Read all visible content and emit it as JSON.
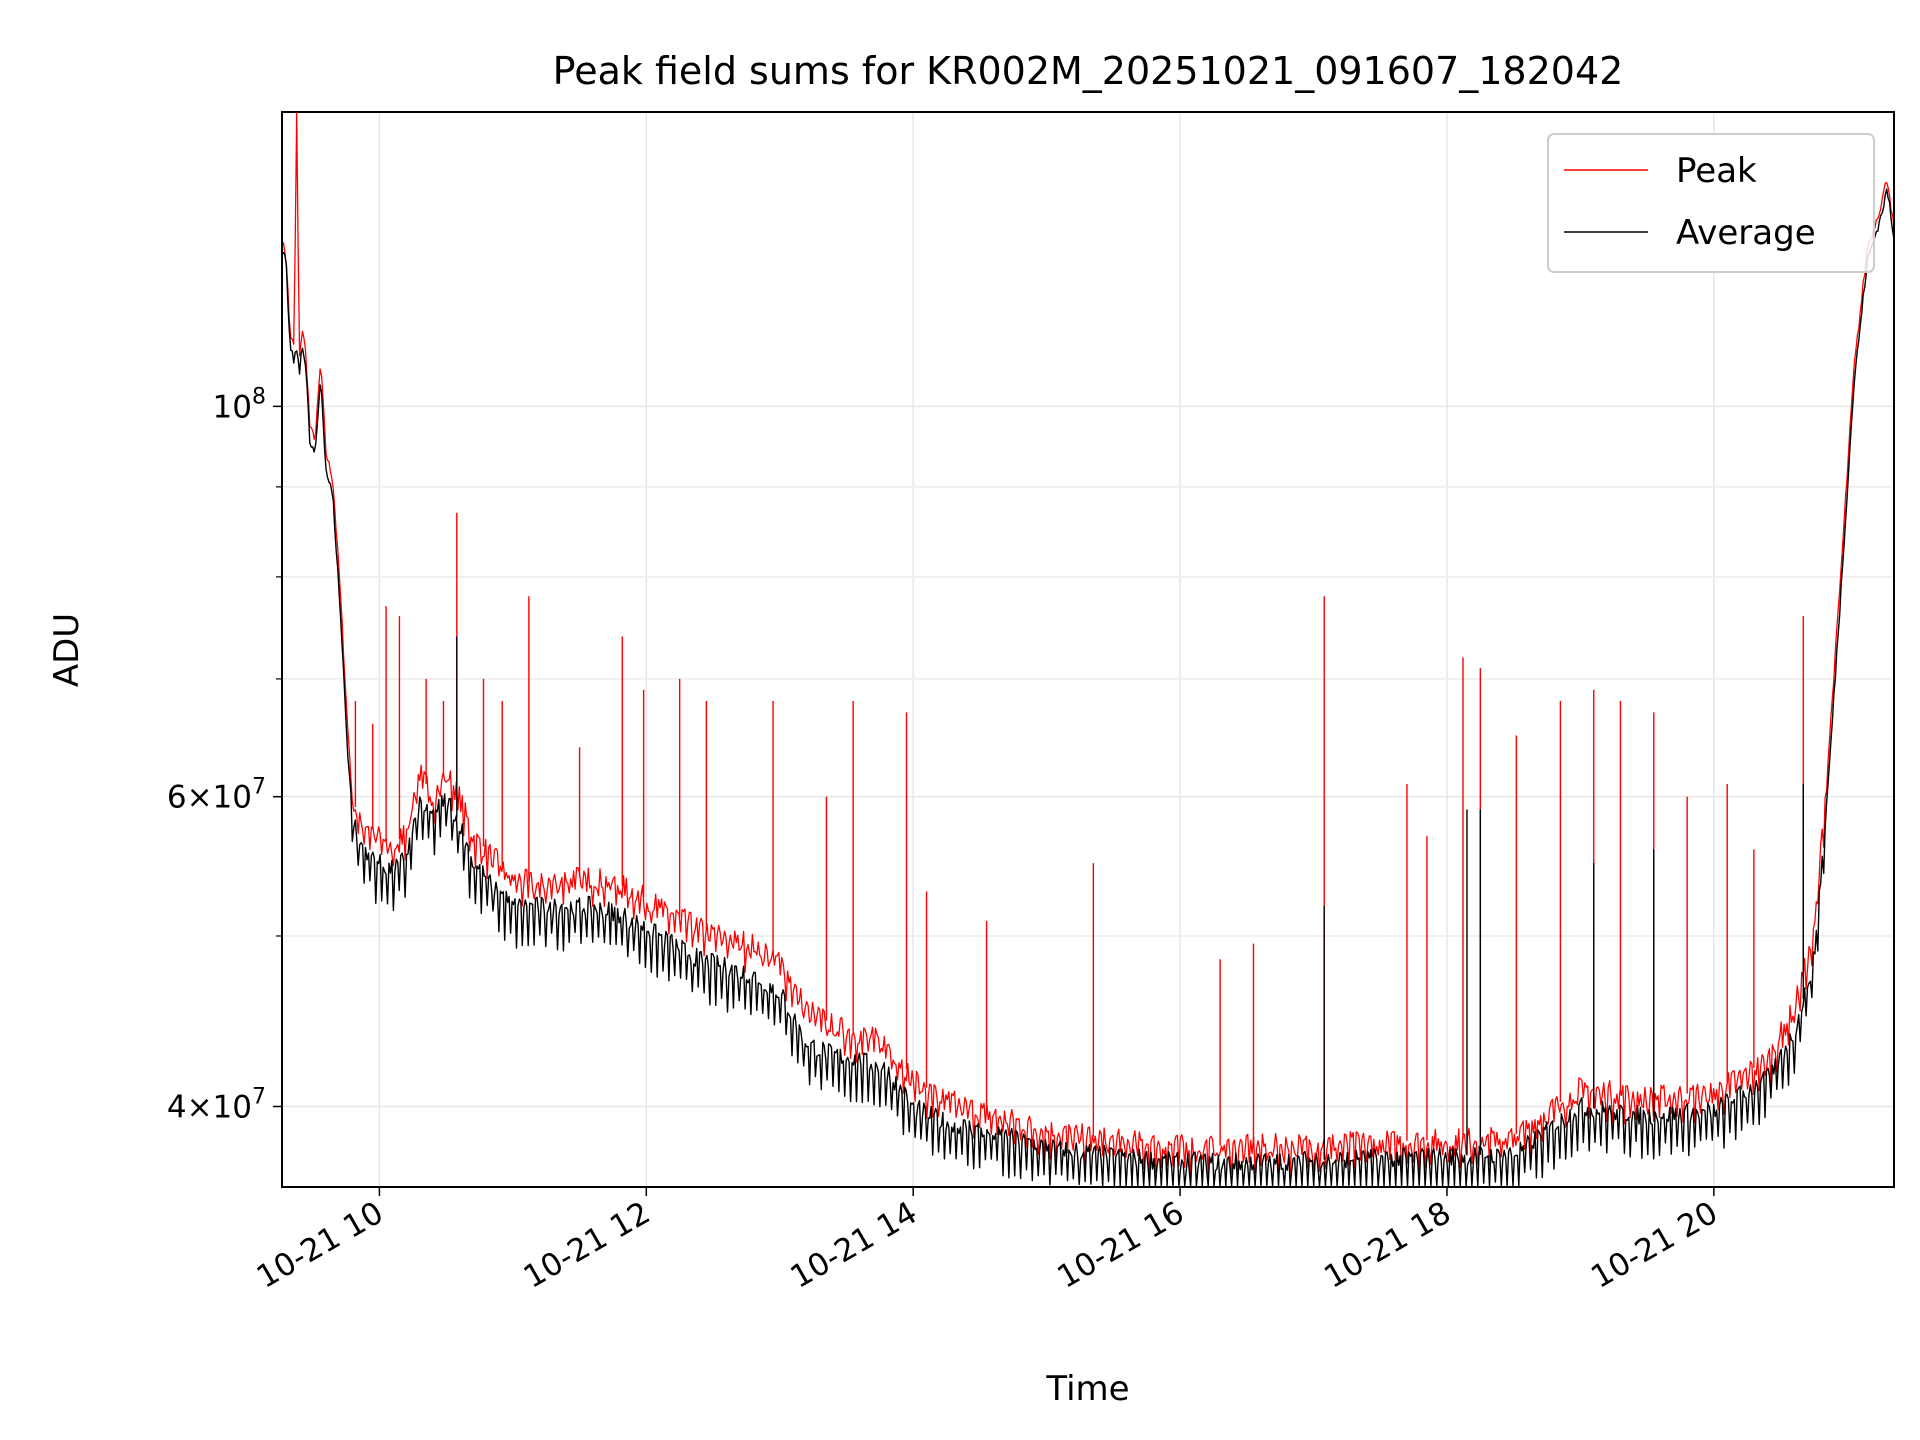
{
  "chart_data": {
    "type": "line",
    "title": "Peak field sums for KR002M_20251021_091607_182042",
    "xlabel": "Time",
    "ylabel": "ADU",
    "yscale": "log",
    "xlim": [
      9.27,
      21.35
    ],
    "ylim": [
      36000000,
      147000000
    ],
    "grid": true,
    "legend_position": "top-right",
    "x_ticks": [
      {
        "value": 10,
        "label": "10-21 10"
      },
      {
        "value": 12,
        "label": "10-21 12"
      },
      {
        "value": 14,
        "label": "10-21 14"
      },
      {
        "value": 16,
        "label": "10-21 16"
      },
      {
        "value": 18,
        "label": "10-21 18"
      },
      {
        "value": 20,
        "label": "10-21 20"
      }
    ],
    "y_ticks": [
      {
        "value": 40000000,
        "base": "4",
        "sup": "7"
      },
      {
        "value": 60000000,
        "base": "6",
        "sup": "7"
      },
      {
        "value": 100000000,
        "base": "10",
        "sup": "8"
      }
    ],
    "y_ticks_times": "×10",
    "y_minor_ticks": [
      50000000,
      70000000,
      80000000,
      90000000
    ],
    "series": [
      {
        "name": "Peak",
        "color": "#ff0000",
        "x": [
          9.27,
          9.3,
          9.33,
          9.36,
          9.38,
          9.4,
          9.42,
          9.45,
          9.48,
          9.52,
          9.56,
          9.6,
          9.65,
          9.7,
          9.73,
          9.76,
          9.8,
          9.85,
          9.9,
          9.95,
          10.0,
          10.1,
          10.2,
          10.3,
          10.4,
          10.5,
          10.6,
          10.7,
          10.8,
          11.0,
          11.2,
          11.4,
          11.6,
          11.8,
          12.0,
          12.2,
          12.4,
          12.6,
          12.8,
          13.0,
          13.2,
          13.4,
          13.6,
          13.8,
          14.0,
          14.2,
          14.5,
          14.8,
          15.0,
          15.5,
          16.0,
          16.5,
          17.0,
          17.5,
          18.0,
          18.5,
          18.7,
          19.0,
          19.5,
          20.0,
          20.4,
          20.6,
          20.75,
          20.85,
          20.95,
          21.05,
          21.15,
          21.25,
          21.3,
          21.35
        ],
        "values": [
          124000000,
          122000000,
          110000000,
          108000000,
          147000000,
          106000000,
          111000000,
          107000000,
          97000000,
          96000000,
          106000000,
          94000000,
          91000000,
          80000000,
          73000000,
          66000000,
          60000000,
          58000000,
          58000000,
          57500000,
          57000000,
          56000000,
          57500000,
          62000000,
          60000000,
          62000000,
          60000000,
          57000000,
          56000000,
          54000000,
          53500000,
          54000000,
          54000000,
          53500000,
          52500000,
          51500000,
          50500000,
          50000000,
          49500000,
          48500000,
          45500000,
          44500000,
          44000000,
          43500000,
          41500000,
          40500000,
          39800000,
          39200000,
          38800000,
          38300000,
          38000000,
          38000000,
          38100000,
          38200000,
          38300000,
          38500000,
          39500000,
          41000000,
          40500000,
          40800000,
          42500000,
          45500000,
          50000000,
          62000000,
          80000000,
          105000000,
          123000000,
          130000000,
          135000000,
          126000000
        ],
        "spikes": [
          [
            9.38,
            147000000
          ],
          [
            9.82,
            68000000
          ],
          [
            9.95,
            66000000
          ],
          [
            10.05,
            77000000
          ],
          [
            10.15,
            76000000
          ],
          [
            10.35,
            70000000
          ],
          [
            10.48,
            68000000
          ],
          [
            10.58,
            87000000
          ],
          [
            10.78,
            70000000
          ],
          [
            10.92,
            68000000
          ],
          [
            11.12,
            78000000
          ],
          [
            11.5,
            64000000
          ],
          [
            11.82,
            74000000
          ],
          [
            11.98,
            69000000
          ],
          [
            12.25,
            70000000
          ],
          [
            12.45,
            68000000
          ],
          [
            12.95,
            68000000
          ],
          [
            13.35,
            60000000
          ],
          [
            13.55,
            68000000
          ],
          [
            13.95,
            67000000
          ],
          [
            14.1,
            53000000
          ],
          [
            14.55,
            51000000
          ],
          [
            15.35,
            55000000
          ],
          [
            16.3,
            48500000
          ],
          [
            16.55,
            49500000
          ],
          [
            17.08,
            78000000
          ],
          [
            17.7,
            61000000
          ],
          [
            17.85,
            57000000
          ],
          [
            18.12,
            72000000
          ],
          [
            18.25,
            71000000
          ],
          [
            18.52,
            65000000
          ],
          [
            18.85,
            68000000
          ],
          [
            19.1,
            69000000
          ],
          [
            19.3,
            68000000
          ],
          [
            19.55,
            67000000
          ],
          [
            19.8,
            60000000
          ],
          [
            20.1,
            61000000
          ],
          [
            20.3,
            56000000
          ],
          [
            20.67,
            76000000
          ]
        ]
      },
      {
        "name": "Average",
        "color": "#000000",
        "x": [
          9.27,
          9.3,
          9.33,
          9.36,
          9.38,
          9.4,
          9.42,
          9.45,
          9.48,
          9.52,
          9.56,
          9.6,
          9.65,
          9.7,
          9.73,
          9.76,
          9.8,
          9.85,
          9.9,
          9.95,
          10.0,
          10.1,
          10.2,
          10.3,
          10.4,
          10.5,
          10.6,
          10.7,
          10.8,
          11.0,
          11.2,
          11.4,
          11.6,
          11.8,
          12.0,
          12.2,
          12.4,
          12.6,
          12.8,
          13.0,
          13.2,
          13.4,
          13.6,
          13.8,
          14.0,
          14.2,
          14.5,
          14.8,
          15.0,
          15.5,
          16.0,
          16.5,
          17.0,
          17.5,
          18.0,
          18.5,
          18.7,
          19.0,
          19.5,
          20.0,
          20.4,
          20.6,
          20.75,
          20.85,
          20.95,
          21.05,
          21.15,
          21.25,
          21.3,
          21.35
        ],
        "values": [
          122000000,
          121000000,
          108000000,
          106000000,
          108000000,
          104000000,
          109000000,
          105000000,
          95000000,
          94000000,
          104000000,
          92000000,
          89000000,
          78000000,
          71000000,
          64000000,
          58500000,
          56500000,
          56000000,
          55500000,
          55000000,
          54500000,
          55500000,
          59500000,
          58500000,
          60000000,
          58000000,
          55000000,
          54000000,
          52000000,
          52000000,
          52000000,
          52000000,
          51500000,
          50500000,
          49500000,
          48500000,
          48000000,
          47500000,
          46500000,
          43500000,
          42800000,
          42500000,
          42000000,
          40000000,
          39300000,
          38800000,
          38300000,
          38000000,
          37500000,
          37200000,
          37200000,
          37300000,
          37400000,
          37500000,
          37600000,
          38500000,
          40000000,
          39500000,
          39800000,
          41500000,
          44000000,
          48500000,
          60000000,
          78000000,
          103000000,
          121000000,
          128000000,
          133000000,
          124000000
        ],
        "spikes": [
          [
            10.58,
            74000000
          ],
          [
            17.08,
            52000000
          ],
          [
            18.15,
            59000000
          ],
          [
            18.25,
            59000000
          ],
          [
            19.1,
            55000000
          ],
          [
            19.55,
            56000000
          ],
          [
            20.67,
            61000000
          ]
        ]
      }
    ]
  }
}
